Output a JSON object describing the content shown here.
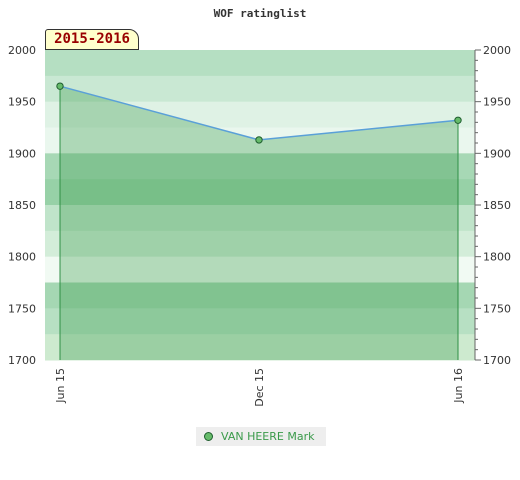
{
  "chart_data": {
    "type": "area",
    "title": "WOF ratinglist",
    "season_label": "2015-2016",
    "x": [
      "Jun 15",
      "Dec 15",
      "Jun 16"
    ],
    "ylim": [
      1700,
      2000
    ],
    "yticks": [
      1700,
      1750,
      1800,
      1850,
      1900,
      1950,
      2000
    ],
    "series": [
      {
        "name": "VAN HEERE Mark",
        "values": [
          1965,
          1913,
          1932
        ]
      }
    ],
    "legend_position": "bottom-center",
    "grid": true,
    "colors": {
      "line": "#5aa0d8",
      "fill": "#3f9f4f",
      "marker": "#66bb6a",
      "band_dark": "#7fc494",
      "band_light": "#e8f5ec"
    }
  }
}
